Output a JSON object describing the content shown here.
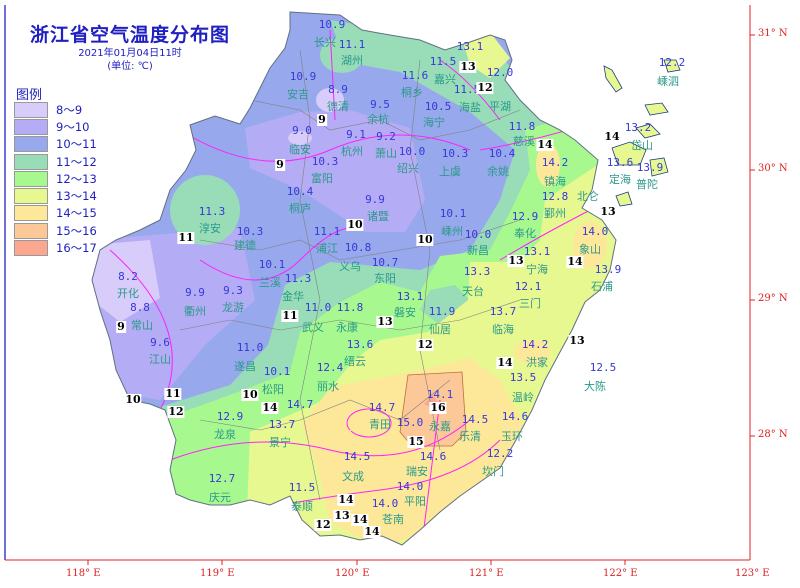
{
  "header": {
    "title": "浙江省空气温度分布图",
    "datetime": "2021年01月04日11时",
    "unit": "(单位: ℃)"
  },
  "legend": {
    "title": "图例",
    "items": [
      {
        "label": "8～9",
        "color": "#d8ccfa"
      },
      {
        "label": "9～10",
        "color": "#b4acf4"
      },
      {
        "label": "10～11",
        "color": "#98a8ec"
      },
      {
        "label": "11～12",
        "color": "#98dcb8"
      },
      {
        "label": "12～13",
        "color": "#a8f890"
      },
      {
        "label": "13～14",
        "color": "#e8f890"
      },
      {
        "label": "14～15",
        "color": "#fce898"
      },
      {
        "label": "15～16",
        "color": "#fcc898"
      },
      {
        "label": "16～17",
        "color": "#fca890"
      }
    ]
  },
  "axes": {
    "longitude": [
      "118° E",
      "119° E",
      "120° E",
      "121° E",
      "122° E",
      "123° E"
    ],
    "latitude": [
      "31° N",
      "30° N",
      "29° N",
      "28° N"
    ]
  },
  "stations": [
    {
      "name": "长兴",
      "value": "10.9"
    },
    {
      "name": "湖州",
      "value": "11.1"
    },
    {
      "name": "安吉",
      "value": "10.9"
    },
    {
      "name": "德清",
      "value": "8.9"
    },
    {
      "name": "余杭",
      "value": "9.5"
    },
    {
      "name": "临安",
      "value": "9.0"
    },
    {
      "name": "杭州",
      "value": "9.1"
    },
    {
      "name": "萧山",
      "value": "9.2"
    },
    {
      "name": "富阳",
      "value": "10.3"
    },
    {
      "name": "桐庐",
      "value": "10.4"
    },
    {
      "name": "诸暨",
      "value": "9.9"
    },
    {
      "name": "绍兴",
      "value": "10.0"
    },
    {
      "name": "上虞",
      "value": "10.3"
    },
    {
      "name": "余姚",
      "value": "10.4"
    },
    {
      "name": "慈溪",
      "value": "11.8"
    },
    {
      "name": "桐乡",
      "value": "11.6"
    },
    {
      "name": "海宁",
      "value": "10.5"
    },
    {
      "name": "嘉兴",
      "value": "11.5"
    },
    {
      "name": "海盐",
      "value": "11.5"
    },
    {
      "name": "",
      "value": "13.1"
    },
    {
      "name": "平湖",
      "value": "12.0"
    },
    {
      "name": "嵊州",
      "value": "10.1"
    },
    {
      "name": "新昌",
      "value": "10.0"
    },
    {
      "name": "浦江",
      "value": "11.1"
    },
    {
      "name": "义乌",
      "value": "10.8"
    },
    {
      "name": "东阳",
      "value": "10.7"
    },
    {
      "name": "建德",
      "value": "10.3"
    },
    {
      "name": "淳安",
      "value": "11.3"
    },
    {
      "name": "开化",
      "value": "8.2"
    },
    {
      "name": "衢州",
      "value": "9.9"
    },
    {
      "name": "龙游",
      "value": "9.3"
    },
    {
      "name": "常山",
      "value": "8.8"
    },
    {
      "name": "江山",
      "value": "9.6"
    },
    {
      "name": "兰溪",
      "value": "10.1"
    },
    {
      "name": "金华",
      "value": "11.3"
    },
    {
      "name": "遂昌",
      "value": "11.0"
    },
    {
      "name": "松阳",
      "value": "10.1"
    },
    {
      "name": "武义",
      "value": "11.0"
    },
    {
      "name": "永康",
      "value": "11.8"
    },
    {
      "name": "缙云",
      "value": "13.6"
    },
    {
      "name": "丽水",
      "value": "12.4"
    },
    {
      "name": "龙泉",
      "value": "12.9"
    },
    {
      "name": "景宁",
      "value": "13.7"
    },
    {
      "name": "",
      "value": "14.7"
    },
    {
      "name": "文成",
      "value": "14.5"
    },
    {
      "name": "庆元",
      "value": "12.7"
    },
    {
      "name": "泰顺",
      "value": "11.5"
    },
    {
      "name": "磐安",
      "value": "13.1"
    },
    {
      "name": "仙居",
      "value": "11.9"
    },
    {
      "name": "天台",
      "value": "13.3"
    },
    {
      "name": "宁海",
      "value": "13.1"
    },
    {
      "name": "三门",
      "value": "12.1"
    },
    {
      "name": "临海",
      "value": "13.7"
    },
    {
      "name": "洪家",
      "value": "14.2"
    },
    {
      "name": "温岭",
      "value": "13.5"
    },
    {
      "name": "玉环",
      "value": "14.6"
    },
    {
      "name": "坎门",
      "value": "12.2"
    },
    {
      "name": "大陈",
      "value": "12.5"
    },
    {
      "name": "永嘉",
      "value": "15.0"
    },
    {
      "name": "",
      "value": "14.1"
    },
    {
      "name": "瑞安",
      "value": "14.6"
    },
    {
      "name": "平阳",
      "value": "14.0"
    },
    {
      "name": "苍南",
      "value": "14.0"
    },
    {
      "name": "乐清",
      "value": "14.5"
    },
    {
      "name": "青田",
      "value": "14.7"
    },
    {
      "name": "嵊泗",
      "value": "12.2"
    },
    {
      "name": "岱山",
      "value": "13.2"
    },
    {
      "name": "定海",
      "value": "13.6"
    },
    {
      "name": "普陀",
      "value": "13.9"
    },
    {
      "name": "镇海",
      "value": "14.2"
    },
    {
      "name": "鄞州",
      "value": "12.8"
    },
    {
      "name": "奉化",
      "value": "12.9"
    },
    {
      "name": "北仑",
      "value": ""
    },
    {
      "name": "象山",
      "value": "14.0"
    },
    {
      "name": "石浦",
      "value": "13.9"
    }
  ],
  "contour_labels": [
    "9",
    "9",
    "10",
    "10",
    "12",
    "13",
    "14",
    "11",
    "9",
    "10",
    "11",
    "12",
    "14",
    "11",
    "10",
    "13",
    "12",
    "14",
    "13",
    "14",
    "13",
    "12",
    "13",
    "14",
    "16",
    "15",
    "14",
    "14",
    "14",
    "13"
  ]
}
